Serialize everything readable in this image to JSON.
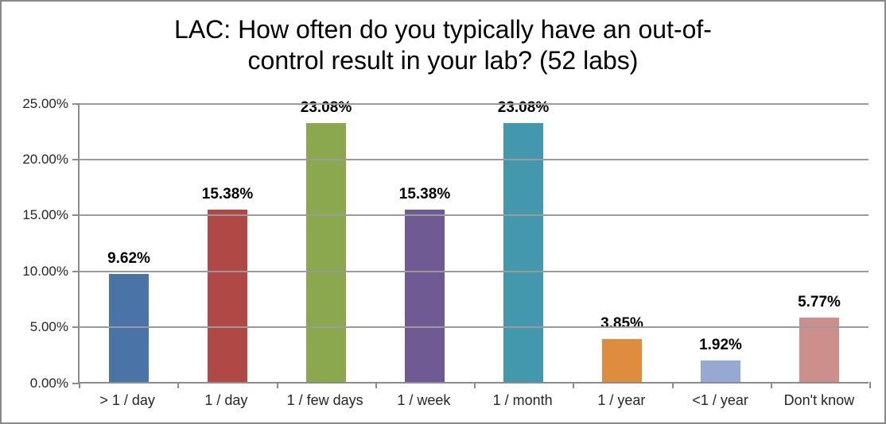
{
  "chart": {
    "title_lines": [
      "LAC: How often do you typically have an out-of-",
      "control result in your lab? (52 labs)"
    ]
  },
  "chart_data": {
    "type": "bar",
    "title": "LAC: How often do you typically have an out-of-control result in your lab? (52 labs)",
    "categories": [
      "> 1 / day",
      "1 / day",
      "1 / few days",
      "1 / week",
      "1 / month",
      "1 / year",
      "<1 / year",
      "Don't know"
    ],
    "values": [
      9.62,
      15.38,
      23.08,
      15.38,
      23.08,
      3.85,
      1.92,
      5.77
    ],
    "value_labels": [
      "9.62%",
      "15.38%",
      "23.08%",
      "15.38%",
      "23.08%",
      "3.85%",
      "1.92%",
      "5.77%"
    ],
    "bar_colors": [
      "#4A74A8",
      "#B04946",
      "#8BA84E",
      "#6F5A93",
      "#4398AD",
      "#E08C3E",
      "#95A9D2",
      "#CC8F8C"
    ],
    "xlabel": "",
    "ylabel": "",
    "ylim": [
      0,
      25
    ],
    "y_tick_values": [
      0,
      5,
      10,
      15,
      20,
      25
    ],
    "y_tick_labels": [
      "0.00%",
      "5.00%",
      "10.00%",
      "15.00%",
      "20.00%",
      "25.00%"
    ],
    "grid": true,
    "legend": "none",
    "colors": {
      "gridline": "#9B9B9B",
      "axis": "#8C8C8C",
      "axis_text": "#262626",
      "title_text": "#000000",
      "frame_border": "#898989"
    }
  }
}
